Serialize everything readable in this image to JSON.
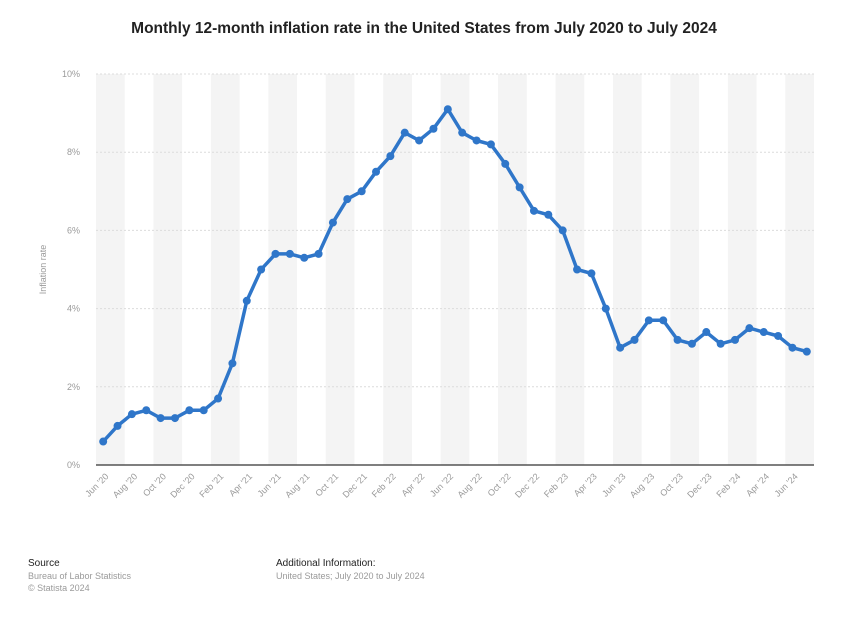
{
  "title": "Monthly 12-month inflation rate in the United States from July 2020 to July 2024",
  "footer": {
    "source_heading": "Source",
    "source_line1": "Bureau of Labor Statistics",
    "source_line2": "© Statista 2024",
    "info_heading": "Additional Information:",
    "info_line1": "United States; July 2020 to July 2024"
  },
  "colors": {
    "line": "#2f76c9",
    "band": "#f4f4f4",
    "grid": "#dcdcdc",
    "axis": "#333333",
    "tick_text": "#9a9a9a"
  },
  "chart_data": {
    "type": "line",
    "title": "Monthly 12-month inflation rate in the United States from July 2020 to July 2024",
    "xlabel": "",
    "ylabel": "Inflation rate",
    "ylim": [
      0,
      10
    ],
    "y_ticks": [
      "0%",
      "2%",
      "4%",
      "6%",
      "8%",
      "10%"
    ],
    "grid": true,
    "x": [
      "Jun '20",
      "Jul '20",
      "Aug '20",
      "Sep '20",
      "Oct '20",
      "Nov '20",
      "Dec '20",
      "Jan '21",
      "Feb '21",
      "Mar '21",
      "Apr '21",
      "May '21",
      "Jun '21",
      "Jul '21",
      "Aug '21",
      "Sep '21",
      "Oct '21",
      "Nov '21",
      "Dec '21",
      "Jan '22",
      "Feb '22",
      "Mar '22",
      "Apr '22",
      "May '22",
      "Jun '22",
      "Jul '22",
      "Aug '22",
      "Sep '22",
      "Oct '22",
      "Nov '22",
      "Dec '22",
      "Jan '23",
      "Feb '23",
      "Mar '23",
      "Apr '23",
      "May '23",
      "Jun '23",
      "Jul '23",
      "Aug '23",
      "Sep '23",
      "Oct '23",
      "Nov '23",
      "Dec '23",
      "Jan '24",
      "Feb '24",
      "Mar '24",
      "Apr '24",
      "May '24",
      "Jun '24",
      "Jul '24"
    ],
    "x_tick_labels": [
      "Jun '20",
      "Aug '20",
      "Oct '20",
      "Dec '20",
      "Feb '21",
      "Apr '21",
      "Jun '21",
      "Aug '21",
      "Oct '21",
      "Dec '21",
      "Feb '22",
      "Apr '22",
      "Jun '22",
      "Aug '22",
      "Oct '22",
      "Dec '22",
      "Feb '23",
      "Apr '23",
      "Jun '23",
      "Aug '23",
      "Oct '23",
      "Dec '23",
      "Feb '24",
      "Apr '24",
      "Jun '24"
    ],
    "series": [
      {
        "values": [
          0.6,
          1.0,
          1.3,
          1.4,
          1.2,
          1.2,
          1.4,
          1.4,
          1.7,
          2.6,
          4.2,
          5.0,
          5.4,
          5.4,
          5.3,
          5.4,
          6.2,
          6.8,
          7.0,
          7.5,
          7.9,
          8.5,
          8.3,
          8.6,
          9.1,
          8.5,
          8.3,
          8.2,
          7.7,
          7.1,
          6.5,
          6.4,
          6.0,
          5.0,
          4.9,
          4.0,
          3.0,
          3.2,
          3.7,
          3.7,
          3.2,
          3.1,
          3.4,
          3.1,
          3.2,
          3.5,
          3.4,
          3.3,
          3.0,
          2.9
        ]
      }
    ]
  }
}
